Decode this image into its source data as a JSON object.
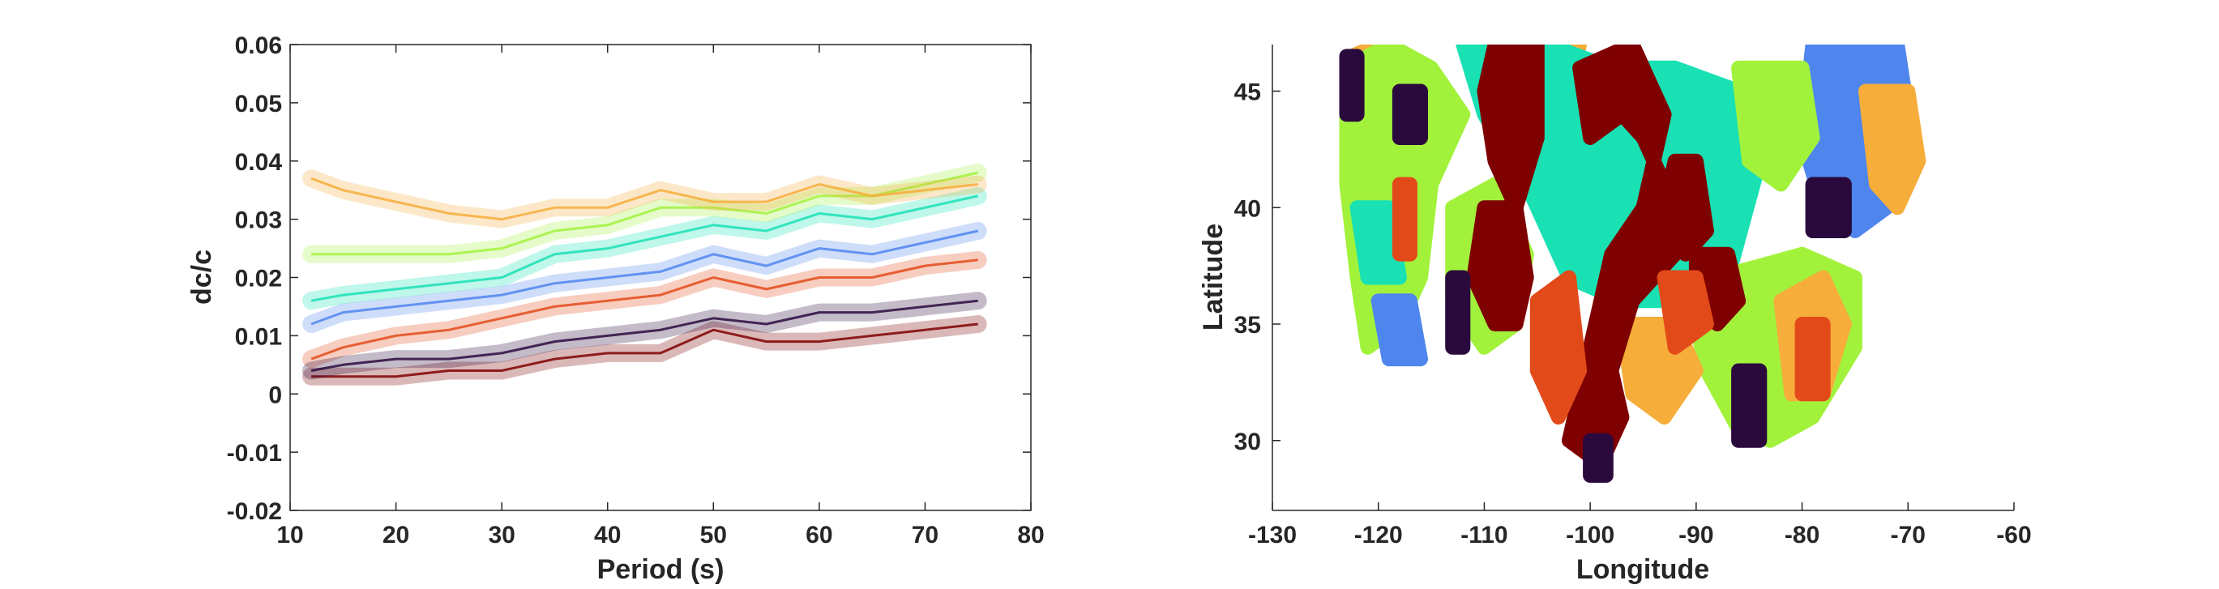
{
  "chart_data": [
    {
      "type": "line",
      "title": "",
      "xlabel": "Period (s)",
      "ylabel": "dc/c",
      "xlim": [
        10,
        80
      ],
      "ylim": [
        -0.02,
        0.06
      ],
      "x_ticks": [
        "10",
        "20",
        "30",
        "40",
        "50",
        "60",
        "70",
        "80"
      ],
      "y_ticks": [
        "-0.02",
        "-0.01",
        "0",
        "0.01",
        "0.02",
        "0.03",
        "0.04",
        "0.05",
        "0.06"
      ],
      "x": [
        12,
        15,
        20,
        25,
        30,
        35,
        40,
        45,
        50,
        55,
        60,
        65,
        70,
        75
      ],
      "series": [
        {
          "color": "#7f0000",
          "values": [
            0.003,
            0.003,
            0.003,
            0.004,
            0.004,
            0.006,
            0.007,
            0.007,
            0.011,
            0.009,
            0.009,
            0.01,
            0.011,
            0.012
          ]
        },
        {
          "color": "#e34a1a",
          "values": [
            0.006,
            0.008,
            0.01,
            0.011,
            0.013,
            0.015,
            0.016,
            0.017,
            0.02,
            0.018,
            0.02,
            0.02,
            0.022,
            0.023
          ]
        },
        {
          "color": "#4f86ee",
          "values": [
            0.012,
            0.014,
            0.015,
            0.016,
            0.017,
            0.019,
            0.02,
            0.021,
            0.024,
            0.022,
            0.025,
            0.024,
            0.026,
            0.028
          ]
        },
        {
          "color": "#19e1b4",
          "values": [
            0.016,
            0.017,
            0.018,
            0.019,
            0.02,
            0.024,
            0.025,
            0.027,
            0.029,
            0.028,
            0.031,
            0.03,
            0.032,
            0.034
          ]
        },
        {
          "color": "#a2f23c",
          "values": [
            0.024,
            0.024,
            0.024,
            0.024,
            0.025,
            0.028,
            0.029,
            0.032,
            0.032,
            0.031,
            0.034,
            0.034,
            0.036,
            0.038
          ]
        },
        {
          "color": "#f6ad3a",
          "values": [
            0.037,
            0.035,
            0.033,
            0.031,
            0.03,
            0.032,
            0.032,
            0.035,
            0.033,
            0.033,
            0.036,
            0.034,
            0.035,
            0.036
          ]
        },
        {
          "color": "#2a0a3d",
          "values": [
            0.004,
            0.005,
            0.006,
            0.006,
            0.007,
            0.009,
            0.01,
            0.011,
            0.013,
            0.012,
            0.014,
            0.014,
            0.015,
            0.016
          ]
        }
      ]
    },
    {
      "type": "scatter",
      "title": "",
      "xlabel": "Longitude",
      "ylabel": "Latitude",
      "xlim": [
        -130,
        -60
      ],
      "ylim": [
        27,
        47
      ],
      "x_ticks": [
        "-130",
        "-120",
        "-110",
        "-100",
        "-90",
        "-80",
        "-70",
        "-60"
      ],
      "y_ticks": [
        "30",
        "35",
        "40",
        "45"
      ],
      "cluster_colors": [
        "#7f0000",
        "#e34a1a",
        "#f6ad3a",
        "#a2f23c",
        "#19e1b4",
        "#4f86ee",
        "#2a0a3d"
      ],
      "regions": [
        {
          "color": "#f6ad3a",
          "polygon": [
            [
              -122.5,
              46.5
            ],
            [
              -120,
              47
            ],
            [
              -117,
              46.5
            ],
            [
              -116,
              44
            ],
            [
              -118,
              41
            ],
            [
              -121,
              40
            ],
            [
              -123,
              43
            ]
          ]
        },
        {
          "color": "#f6ad3a",
          "polygon": [
            [
              -107,
              47
            ],
            [
              -101,
              47
            ],
            [
              -102,
              45
            ],
            [
              -106,
              45
            ]
          ]
        },
        {
          "color": "#a2f23c",
          "polygon": [
            [
              -123,
              46
            ],
            [
              -119,
              47
            ],
            [
              -115,
              46
            ],
            [
              -112,
              44
            ],
            [
              -115,
              41
            ],
            [
              -116,
              37
            ],
            [
              -118,
              35
            ],
            [
              -121,
              34
            ],
            [
              -122,
              37
            ],
            [
              -123,
              41
            ]
          ]
        },
        {
          "color": "#a2f23c",
          "polygon": [
            [
              -113,
              40
            ],
            [
              -109,
              41
            ],
            [
              -106,
              38
            ],
            [
              -107,
              35
            ],
            [
              -110,
              34
            ],
            [
              -113,
              36
            ]
          ]
        },
        {
          "color": "#19e1b4",
          "polygon": [
            [
              -112,
              47
            ],
            [
              -104,
              47
            ],
            [
              -98,
              46
            ],
            [
              -92,
              46
            ],
            [
              -86,
              45
            ],
            [
              -84,
              42
            ],
            [
              -87,
              37
            ],
            [
              -92,
              36
            ],
            [
              -97,
              36
            ],
            [
              -102,
              37
            ],
            [
              -106,
              41
            ],
            [
              -110,
              44
            ]
          ]
        },
        {
          "color": "#19e1b4",
          "polygon": [
            [
              -122,
              40
            ],
            [
              -119,
              40
            ],
            [
              -118,
              37
            ],
            [
              -121,
              37
            ]
          ]
        },
        {
          "color": "#4f86ee",
          "polygon": [
            [
              -79,
              47
            ],
            [
              -71,
              47
            ],
            [
              -70,
              44
            ],
            [
              -72,
              40
            ],
            [
              -75,
              39
            ],
            [
              -78,
              40
            ],
            [
              -80,
              43
            ]
          ]
        },
        {
          "color": "#4f86ee",
          "polygon": [
            [
              -120,
              36
            ],
            [
              -117,
              36
            ],
            [
              -116,
              33.5
            ],
            [
              -119,
              33.5
            ]
          ]
        },
        {
          "color": "#a2f23c",
          "polygon": [
            [
              -86,
              46
            ],
            [
              -80,
              46
            ],
            [
              -79,
              43
            ],
            [
              -82,
              41
            ],
            [
              -85,
              42
            ]
          ]
        },
        {
          "color": "#f6ad3a",
          "polygon": [
            [
              -74,
              45
            ],
            [
              -70,
              45
            ],
            [
              -69,
              42
            ],
            [
              -71,
              40
            ],
            [
              -73,
              41
            ]
          ]
        },
        {
          "color": "#a2f23c",
          "polygon": [
            [
              -88,
              37
            ],
            [
              -80,
              38
            ],
            [
              -75,
              37
            ],
            [
              -75,
              34
            ],
            [
              -79,
              31
            ],
            [
              -83,
              30
            ],
            [
              -86,
              30.5
            ],
            [
              -89,
              33
            ],
            [
              -90,
              35
            ]
          ]
        },
        {
          "color": "#f6ad3a",
          "polygon": [
            [
              -82,
              36
            ],
            [
              -78,
              37
            ],
            [
              -76,
              35
            ],
            [
              -78,
              32
            ],
            [
              -81,
              32
            ]
          ]
        },
        {
          "color": "#f6ad3a",
          "polygon": [
            [
              -97,
              35
            ],
            [
              -92,
              35
            ],
            [
              -90,
              33
            ],
            [
              -93,
              31
            ],
            [
              -96,
              32
            ]
          ]
        },
        {
          "color": "#7f0000",
          "polygon": [
            [
              -109,
              47
            ],
            [
              -105,
              47
            ],
            [
              -105,
              43
            ],
            [
              -107,
              40
            ],
            [
              -109,
              42
            ],
            [
              -110,
              45
            ]
          ]
        },
        {
          "color": "#7f0000",
          "polygon": [
            [
              -101,
              46
            ],
            [
              -96,
              47
            ],
            [
              -93,
              44
            ],
            [
              -95,
              40
            ],
            [
              -98,
              38
            ],
            [
              -100,
              34
            ],
            [
              -102,
              30
            ],
            [
              -99,
              29
            ],
            [
              -97,
              31
            ],
            [
              -98,
              33
            ],
            [
              -96,
              36
            ],
            [
              -92,
              38
            ],
            [
              -93,
              41
            ],
            [
              -95,
              43
            ],
            [
              -97,
              44
            ],
            [
              -100,
              43
            ]
          ]
        },
        {
          "color": "#7f0000",
          "polygon": [
            [
              -110,
              40
            ],
            [
              -107,
              40
            ],
            [
              -106,
              37
            ],
            [
              -107,
              35
            ],
            [
              -109,
              35
            ],
            [
              -111,
              37
            ]
          ]
        },
        {
          "color": "#7f0000",
          "polygon": [
            [
              -92,
              42
            ],
            [
              -90,
              42
            ],
            [
              -89,
              39
            ],
            [
              -91,
              38
            ],
            [
              -93,
              40
            ]
          ]
        },
        {
          "color": "#7f0000",
          "polygon": [
            [
              -90,
              38
            ],
            [
              -87,
              38
            ],
            [
              -86,
              36
            ],
            [
              -88,
              35
            ],
            [
              -90,
              36
            ]
          ]
        },
        {
          "color": "#e34a1a",
          "polygon": [
            [
              -105,
              36
            ],
            [
              -102,
              37
            ],
            [
              -101,
              33
            ],
            [
              -103,
              31
            ],
            [
              -105,
              33
            ]
          ]
        },
        {
          "color": "#e34a1a",
          "polygon": [
            [
              -93,
              37
            ],
            [
              -90,
              37
            ],
            [
              -89,
              35
            ],
            [
              -92,
              34
            ]
          ]
        },
        {
          "color": "#e34a1a",
          "polygon": [
            [
              -118,
              41
            ],
            [
              -117,
              41
            ],
            [
              -117,
              38
            ],
            [
              -118,
              38
            ]
          ]
        },
        {
          "color": "#e34a1a",
          "polygon": [
            [
              -80,
              35
            ],
            [
              -78,
              35
            ],
            [
              -78,
              32
            ],
            [
              -80,
              32
            ]
          ]
        },
        {
          "color": "#2a0a3d",
          "polygon": [
            [
              -123,
              46.5
            ],
            [
              -122,
              46.5
            ],
            [
              -122,
              44
            ],
            [
              -123,
              44
            ]
          ]
        },
        {
          "color": "#2a0a3d",
          "polygon": [
            [
              -118,
              45
            ],
            [
              -116,
              45
            ],
            [
              -116,
              43
            ],
            [
              -118,
              43
            ]
          ]
        },
        {
          "color": "#2a0a3d",
          "polygon": [
            [
              -113,
              37
            ],
            [
              -112,
              37
            ],
            [
              -112,
              34
            ],
            [
              -113,
              34
            ]
          ]
        },
        {
          "color": "#2a0a3d",
          "polygon": [
            [
              -86,
              33
            ],
            [
              -84,
              33
            ],
            [
              -84,
              30
            ],
            [
              -86,
              30
            ]
          ]
        },
        {
          "color": "#2a0a3d",
          "polygon": [
            [
              -100,
              30
            ],
            [
              -98.5,
              30
            ],
            [
              -98.5,
              28.5
            ],
            [
              -100,
              28.5
            ]
          ]
        },
        {
          "color": "#2a0a3d",
          "polygon": [
            [
              -79,
              41
            ],
            [
              -76,
              41
            ],
            [
              -76,
              39
            ],
            [
              -79,
              39
            ]
          ]
        }
      ]
    }
  ]
}
